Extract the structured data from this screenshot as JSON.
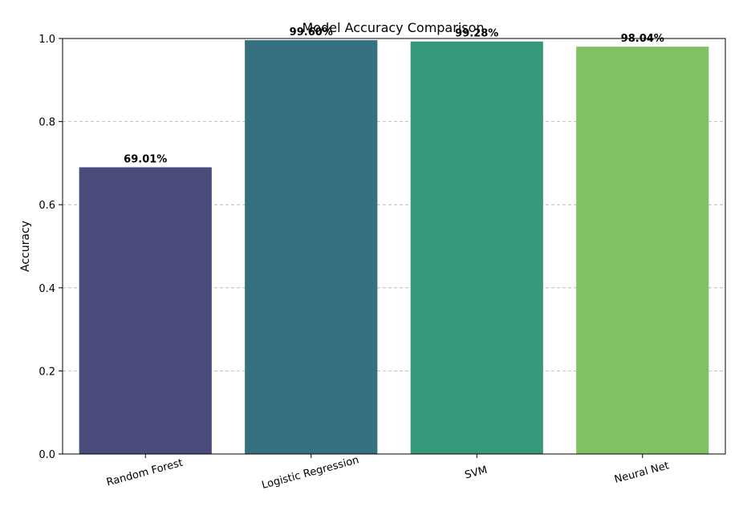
{
  "chart_data": {
    "type": "bar",
    "title": "Model Accuracy Comparison",
    "xlabel": "",
    "ylabel": "Accuracy",
    "categories": [
      "Random Forest",
      "Logistic Regression",
      "SVM",
      "Neural Net"
    ],
    "values": [
      0.6901,
      0.996,
      0.9928,
      0.9804
    ],
    "value_labels": [
      "69.01%",
      "99.60%",
      "99.28%",
      "98.04%"
    ],
    "colors": [
      "#4a4c7c",
      "#36717f",
      "#35977c",
      "#82c263"
    ],
    "ylim": [
      0,
      1.0
    ],
    "yticks": [
      0.0,
      0.2,
      0.4,
      0.6,
      0.8,
      1.0
    ],
    "ytick_labels": [
      "0.0",
      "0.2",
      "0.4",
      "0.6",
      "0.8",
      "1.0"
    ],
    "grid": "y-dashed",
    "legend": "none"
  }
}
